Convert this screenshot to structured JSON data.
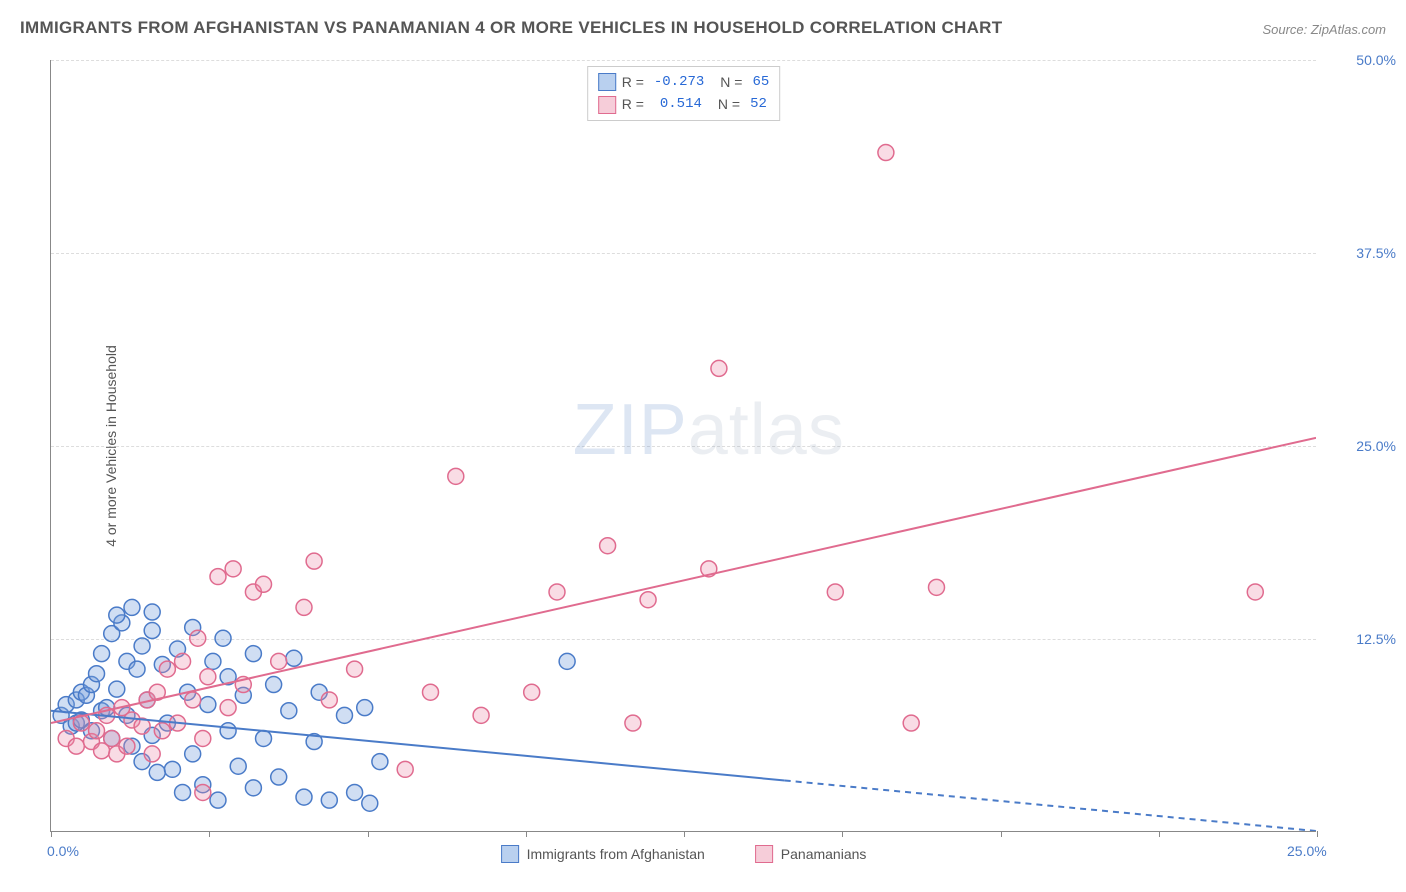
{
  "title": "IMMIGRANTS FROM AFGHANISTAN VS PANAMANIAN 4 OR MORE VEHICLES IN HOUSEHOLD CORRELATION CHART",
  "source": "Source: ZipAtlas.com",
  "watermark_a": "ZIP",
  "watermark_b": "atlas",
  "chart": {
    "type": "scatter",
    "xlim": [
      0,
      25
    ],
    "ylim": [
      0,
      50
    ],
    "x_ticks": [
      0,
      3.125,
      6.25,
      9.375,
      12.5,
      15.625,
      18.75,
      21.875,
      25
    ],
    "x_tick_labels": {
      "0": "0.0%",
      "25": "25.0%"
    },
    "y_ticks": [
      12.5,
      25.0,
      37.5,
      50.0
    ],
    "y_tick_labels": [
      "12.5%",
      "25.0%",
      "37.5%",
      "50.0%"
    ],
    "y_axis_label": "4 or more Vehicles in Household",
    "grid_color": "#dddddd",
    "axis_color": "#888888",
    "background_color": "#ffffff",
    "marker_radius": 8,
    "marker_stroke_width": 1.5,
    "line_width": 2,
    "series": [
      {
        "name": "Immigrants from Afghanistan",
        "fill_color": "rgba(120,160,220,0.35)",
        "stroke_color": "#4a7bc8",
        "swatch_fill": "#b9d0ef",
        "swatch_border": "#4a7bc8",
        "R": "-0.273",
        "N": "65",
        "trend": {
          "x1": 0,
          "y1": 7.8,
          "x2": 25,
          "y2": 0.0,
          "solid_until_x": 14.5
        },
        "points": [
          [
            0.2,
            7.5
          ],
          [
            0.3,
            8.2
          ],
          [
            0.4,
            6.8
          ],
          [
            0.5,
            7.0
          ],
          [
            0.5,
            8.5
          ],
          [
            0.6,
            9.0
          ],
          [
            0.6,
            7.2
          ],
          [
            0.7,
            8.8
          ],
          [
            0.8,
            6.5
          ],
          [
            0.8,
            9.5
          ],
          [
            0.9,
            10.2
          ],
          [
            1.0,
            7.8
          ],
          [
            1.0,
            11.5
          ],
          [
            1.1,
            8.0
          ],
          [
            1.2,
            12.8
          ],
          [
            1.2,
            6.0
          ],
          [
            1.3,
            9.2
          ],
          [
            1.4,
            13.5
          ],
          [
            1.5,
            7.5
          ],
          [
            1.5,
            11.0
          ],
          [
            1.6,
            5.5
          ],
          [
            1.7,
            10.5
          ],
          [
            1.8,
            12.0
          ],
          [
            1.8,
            4.5
          ],
          [
            1.9,
            8.5
          ],
          [
            2.0,
            13.0
          ],
          [
            2.0,
            6.2
          ],
          [
            2.1,
            3.8
          ],
          [
            2.2,
            10.8
          ],
          [
            2.3,
            7.0
          ],
          [
            2.4,
            4.0
          ],
          [
            2.5,
            11.8
          ],
          [
            2.6,
            2.5
          ],
          [
            2.7,
            9.0
          ],
          [
            2.8,
            5.0
          ],
          [
            2.8,
            13.2
          ],
          [
            3.0,
            3.0
          ],
          [
            3.1,
            8.2
          ],
          [
            3.2,
            11.0
          ],
          [
            3.3,
            2.0
          ],
          [
            3.5,
            6.5
          ],
          [
            3.5,
            10.0
          ],
          [
            3.7,
            4.2
          ],
          [
            3.8,
            8.8
          ],
          [
            4.0,
            2.8
          ],
          [
            4.0,
            11.5
          ],
          [
            4.2,
            6.0
          ],
          [
            4.4,
            9.5
          ],
          [
            4.5,
            3.5
          ],
          [
            4.7,
            7.8
          ],
          [
            4.8,
            11.2
          ],
          [
            5.0,
            2.2
          ],
          [
            5.2,
            5.8
          ],
          [
            5.3,
            9.0
          ],
          [
            5.5,
            2.0
          ],
          [
            5.8,
            7.5
          ],
          [
            6.0,
            2.5
          ],
          [
            6.2,
            8.0
          ],
          [
            6.3,
            1.8
          ],
          [
            6.5,
            4.5
          ],
          [
            10.2,
            11.0
          ],
          [
            2.0,
            14.2
          ],
          [
            1.3,
            14.0
          ],
          [
            1.6,
            14.5
          ],
          [
            3.4,
            12.5
          ]
        ]
      },
      {
        "name": "Panamanians",
        "fill_color": "rgba(235,140,170,0.30)",
        "stroke_color": "#e06b8f",
        "swatch_fill": "#f6cdd9",
        "swatch_border": "#e06b8f",
        "R": "0.514",
        "N": "52",
        "trend": {
          "x1": 0,
          "y1": 7.0,
          "x2": 25,
          "y2": 25.5,
          "solid_until_x": 25
        },
        "points": [
          [
            0.3,
            6.0
          ],
          [
            0.5,
            5.5
          ],
          [
            0.6,
            7.0
          ],
          [
            0.8,
            5.8
          ],
          [
            0.9,
            6.5
          ],
          [
            1.0,
            5.2
          ],
          [
            1.1,
            7.5
          ],
          [
            1.2,
            6.0
          ],
          [
            1.3,
            5.0
          ],
          [
            1.4,
            8.0
          ],
          [
            1.5,
            5.5
          ],
          [
            1.6,
            7.2
          ],
          [
            1.8,
            6.8
          ],
          [
            1.9,
            8.5
          ],
          [
            2.0,
            5.0
          ],
          [
            2.1,
            9.0
          ],
          [
            2.2,
            6.5
          ],
          [
            2.3,
            10.5
          ],
          [
            2.5,
            7.0
          ],
          [
            2.6,
            11.0
          ],
          [
            2.8,
            8.5
          ],
          [
            2.9,
            12.5
          ],
          [
            3.0,
            6.0
          ],
          [
            3.1,
            10.0
          ],
          [
            3.3,
            16.5
          ],
          [
            3.5,
            8.0
          ],
          [
            3.6,
            17.0
          ],
          [
            3.8,
            9.5
          ],
          [
            4.0,
            15.5
          ],
          [
            4.2,
            16.0
          ],
          [
            4.5,
            11.0
          ],
          [
            5.0,
            14.5
          ],
          [
            5.2,
            17.5
          ],
          [
            5.5,
            8.5
          ],
          [
            6.0,
            10.5
          ],
          [
            7.0,
            4.0
          ],
          [
            7.5,
            9.0
          ],
          [
            8.0,
            23.0
          ],
          [
            8.5,
            7.5
          ],
          [
            9.5,
            9.0
          ],
          [
            10.0,
            15.5
          ],
          [
            11.0,
            18.5
          ],
          [
            11.5,
            7.0
          ],
          [
            11.8,
            15.0
          ],
          [
            13.0,
            17.0
          ],
          [
            13.2,
            30.0
          ],
          [
            15.5,
            15.5
          ],
          [
            16.5,
            44.0
          ],
          [
            17.0,
            7.0
          ],
          [
            17.5,
            15.8
          ],
          [
            23.8,
            15.5
          ],
          [
            3.0,
            2.5
          ]
        ]
      }
    ],
    "legend_labels": {
      "R_prefix": "R =",
      "N_prefix": "N =",
      "series1_label": "Immigrants from Afghanistan",
      "series2_label": "Panamanians"
    }
  }
}
